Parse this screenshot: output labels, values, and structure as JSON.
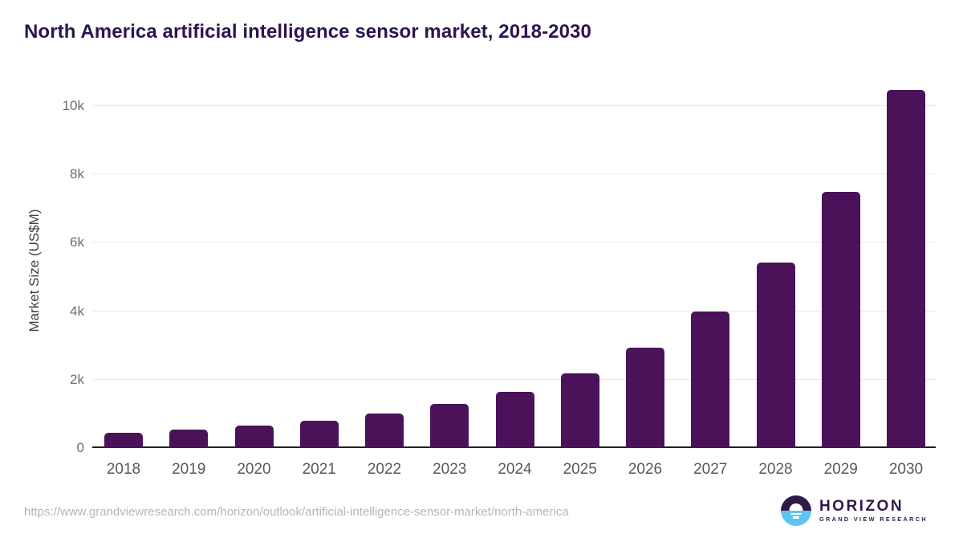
{
  "header": {
    "title": "North America artificial intelligence sensor market, 2018-2030"
  },
  "chart_data": {
    "type": "bar",
    "title": "North America artificial intelligence sensor market, 2018-2030",
    "categories": [
      "2018",
      "2019",
      "2020",
      "2021",
      "2022",
      "2023",
      "2024",
      "2025",
      "2026",
      "2027",
      "2028",
      "2029",
      "2030"
    ],
    "values": [
      440,
      530,
      650,
      800,
      1010,
      1280,
      1650,
      2190,
      2940,
      4000,
      5420,
      7480,
      10470
    ],
    "xlabel": "",
    "ylabel": "Market Size (US$M)",
    "ylim": [
      0,
      10000
    ],
    "yticks": [
      {
        "label": "0",
        "value": 0
      },
      {
        "label": "2k",
        "value": 2000
      },
      {
        "label": "4k",
        "value": 4000
      },
      {
        "label": "6k",
        "value": 6000
      },
      {
        "label": "8k",
        "value": 8000
      },
      {
        "label": "10k",
        "value": 10000
      }
    ],
    "grid": true,
    "legend": "none",
    "bar_color": "#4a1259"
  },
  "footer": {
    "source_url": "https://www.grandviewresearch.com/horizon/outlook/artificial-intelligence-sensor-market/north-america",
    "logo": {
      "brand": "HORIZON",
      "sub_brand": "GRAND VIEW RESEARCH"
    }
  },
  "colors": {
    "title": "#2d1450",
    "bar": "#4a1259",
    "gridline": "#e8e9ea",
    "axis_line": "#1f1f1f",
    "tick_text": "#6d6e70",
    "x_tick_text": "#58595b",
    "url_text": "#b5b6b8",
    "logo_purple": "#2e1a47",
    "logo_blue": "#5fc3f1"
  }
}
